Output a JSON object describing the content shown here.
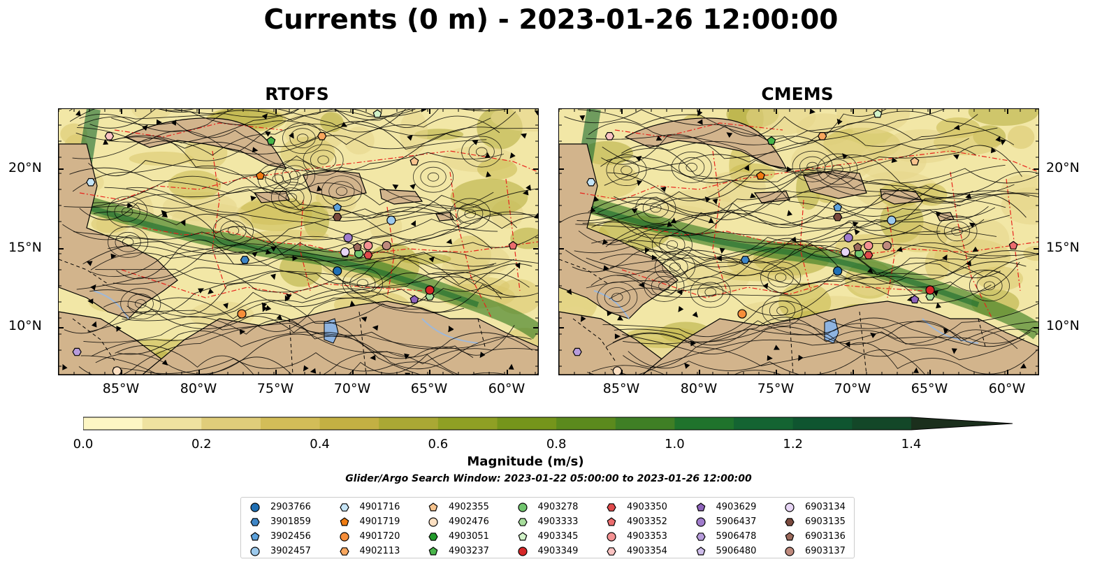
{
  "title": "Currents (0 m) - 2023-01-26 12:00:00",
  "panels": [
    {
      "name": "RTOFS"
    },
    {
      "name": "CMEMS"
    }
  ],
  "lon_labels": [
    "85°W",
    "80°W",
    "75°W",
    "70°W",
    "65°W",
    "60°W"
  ],
  "lat_labels": [
    "20°N",
    "15°N",
    "10°N"
  ],
  "colorbar": {
    "label": "Magnitude (m/s)",
    "ticks": [
      "0.0",
      "0.2",
      "0.4",
      "0.6",
      "0.8",
      "1.0",
      "1.2",
      "1.4"
    ],
    "extend": "max",
    "colors": [
      "#fdf6c4",
      "#efe2a0",
      "#e0cd7a",
      "#d3bd58",
      "#c3b043",
      "#aaa834",
      "#8fa024",
      "#75951b",
      "#5b8a1d",
      "#3f7f25",
      "#1f732c",
      "#146432",
      "#0f5530",
      "#134728",
      "#183a22",
      "#1b2f1c"
    ]
  },
  "search_window": "Glider/Argo Search Window: 2023-01-22 05:00:00 to 2023-01-26 12:00:00",
  "legend": [
    {
      "id": "2903766",
      "color": "#1f6fb4",
      "marker": "circle"
    },
    {
      "id": "3901859",
      "color": "#3f86c6",
      "marker": "hexagon"
    },
    {
      "id": "3902456",
      "color": "#5da2dc",
      "marker": "pentagon"
    },
    {
      "id": "3902457",
      "color": "#9cc9ec",
      "marker": "circle"
    },
    {
      "id": "4901716",
      "color": "#c6e5f7",
      "marker": "hexagon"
    },
    {
      "id": "4901719",
      "color": "#f07c12",
      "marker": "pentagon"
    },
    {
      "id": "4901720",
      "color": "#f68e3a",
      "marker": "circle"
    },
    {
      "id": "4902113",
      "color": "#f9a75e",
      "marker": "hexagon"
    },
    {
      "id": "4902355",
      "color": "#f8c48e",
      "marker": "pentagon"
    },
    {
      "id": "4902476",
      "color": "#fde0c2",
      "marker": "circle"
    },
    {
      "id": "4903051",
      "color": "#229a2b",
      "marker": "hexagon"
    },
    {
      "id": "4903237",
      "color": "#48b54a",
      "marker": "pentagon"
    },
    {
      "id": "4903278",
      "color": "#71c56e",
      "marker": "circle"
    },
    {
      "id": "4903333",
      "color": "#a7dd9c",
      "marker": "hexagon"
    },
    {
      "id": "4903345",
      "color": "#d2f3c9",
      "marker": "pentagon"
    },
    {
      "id": "4903349",
      "color": "#d62728",
      "marker": "circle"
    },
    {
      "id": "4903350",
      "color": "#e04a4b",
      "marker": "hexagon"
    },
    {
      "id": "4903352",
      "color": "#ec6d6e",
      "marker": "pentagon"
    },
    {
      "id": "4903353",
      "color": "#f49293",
      "marker": "circle"
    },
    {
      "id": "4903354",
      "color": "#fbc3c2",
      "marker": "hexagon"
    },
    {
      "id": "4903629",
      "color": "#8e63bb",
      "marker": "pentagon"
    },
    {
      "id": "5906437",
      "color": "#a07ccc",
      "marker": "circle"
    },
    {
      "id": "5906478",
      "color": "#b79cdb",
      "marker": "hexagon"
    },
    {
      "id": "5906480",
      "color": "#cfbdeb",
      "marker": "pentagon"
    },
    {
      "id": "6903134",
      "color": "#e8d6f6",
      "marker": "circle"
    },
    {
      "id": "6903135",
      "color": "#7b4a3e",
      "marker": "hexagon"
    },
    {
      "id": "6903136",
      "color": "#9c6a5c",
      "marker": "pentagon"
    },
    {
      "id": "6903137",
      "color": "#bf8a7d",
      "marker": "circle"
    }
  ]
}
